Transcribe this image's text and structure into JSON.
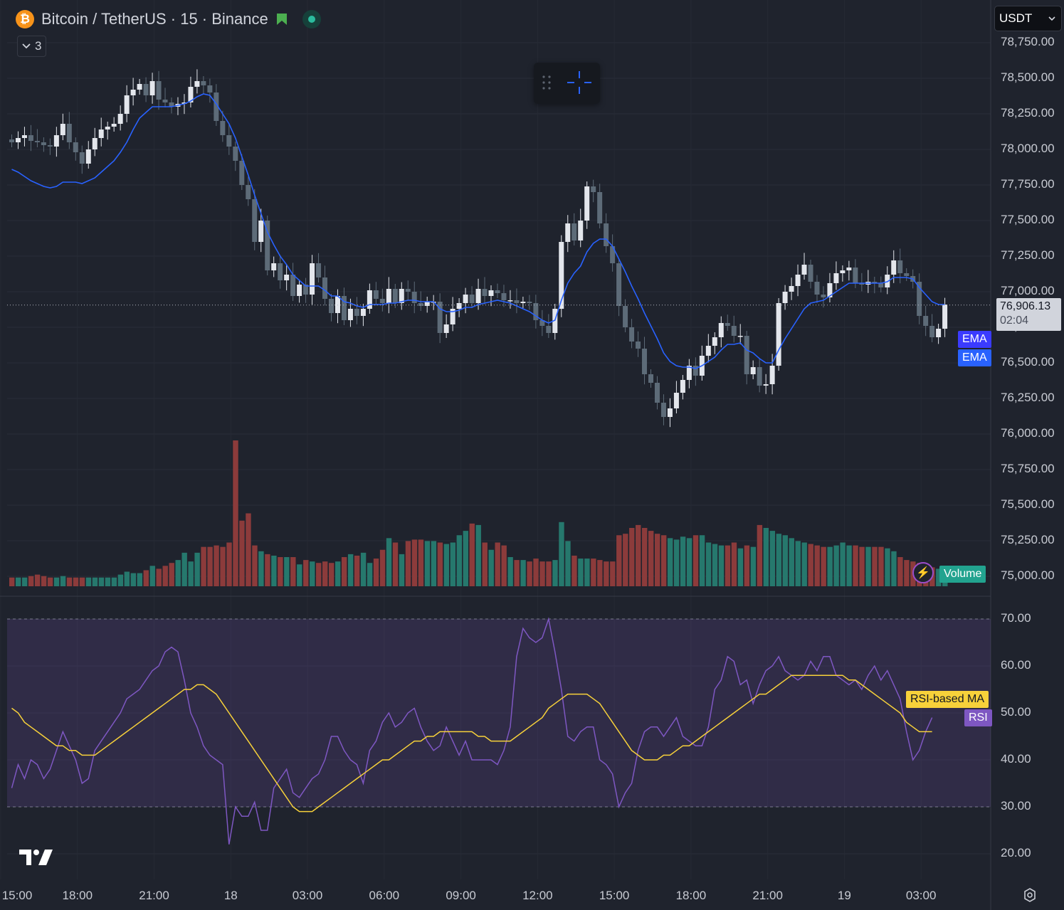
{
  "header": {
    "symbol_title": "Bitcoin / TetherUS · 15 · Binance",
    "collapsed_count": "3",
    "currency": "USDT"
  },
  "price_axis": {
    "labels": [
      "78,750.00",
      "78,500.00",
      "78,250.00",
      "78,000.00",
      "77,750.00",
      "77,500.00",
      "77,250.00",
      "77,000.00",
      "76,750.00",
      "76,500.00",
      "76,250.00",
      "76,000.00",
      "75,750.00",
      "75,500.00",
      "75,250.00",
      "75,000.00"
    ],
    "values": [
      78750,
      78500,
      78250,
      78000,
      77750,
      77500,
      77250,
      77000,
      76750,
      76500,
      76250,
      76000,
      75750,
      75500,
      75250,
      75000
    ]
  },
  "rsi_axis": {
    "labels": [
      "70.00",
      "60.00",
      "50.00",
      "40.00",
      "30.00",
      "20.00"
    ],
    "values": [
      70,
      60,
      50,
      40,
      30,
      20
    ]
  },
  "time_axis": {
    "labels": [
      "15:00",
      "18:00",
      "21:00",
      "18",
      "03:00",
      "06:00",
      "09:00",
      "12:00",
      "15:00",
      "18:00",
      "21:00",
      "19",
      "03:00"
    ],
    "bar_index": [
      -2,
      10,
      22,
      34,
      46,
      58,
      70,
      82,
      94,
      106,
      118,
      130,
      142
    ]
  },
  "last_price": {
    "value": "76,906.13",
    "countdown": "02:04",
    "numeric": 76906.13
  },
  "indicator_labels": {
    "ema1": "EMA",
    "ema2": "EMA",
    "volume": "Volume",
    "rsi_ma": "RSI-based MA",
    "rsi": "RSI"
  },
  "colors": {
    "background": "#1f232d",
    "up_candle": "#e3e6ec",
    "down_candle": "#5d6b78",
    "ema": "#2962ff",
    "ema_tag": "#3b3bff",
    "vol_up": "#26786d",
    "vol_down": "#8c3b3b",
    "rsi": "#7e57c2",
    "rsi_ma": "#f7d13a",
    "rsi_band": "#7e57c2",
    "volume_tag": "#22a38f"
  },
  "icons": [
    "bitcoin-icon",
    "flag-icon",
    "status-dot-icon",
    "chevron-down-icon",
    "drag-handle-icon",
    "crosshair-icon",
    "lightning-icon",
    "tradingview-logo",
    "settings-icon"
  ],
  "chart_data": {
    "type": "candlestick",
    "symbol": "BTCUSDT",
    "interval": "15",
    "exchange": "Binance",
    "close": [
      78050,
      78080,
      78100,
      78060,
      78050,
      78030,
      78020,
      78100,
      78180,
      78050,
      77980,
      77900,
      78000,
      78080,
      78140,
      78160,
      78180,
      78250,
      78380,
      78420,
      78460,
      78380,
      78480,
      78350,
      78330,
      78300,
      78320,
      78330,
      78440,
      78480,
      78450,
      78400,
      78200,
      78100,
      78020,
      77920,
      77750,
      77650,
      77350,
      77500,
      77150,
      77200,
      77080,
      77120,
      76970,
      77050,
      76980,
      77200,
      77100,
      76950,
      76850,
      76970,
      76800,
      76880,
      76830,
      76880,
      77010,
      76950,
      76920,
      77020,
      76920,
      77020,
      77000,
      76920,
      76900,
      76930,
      76930,
      76710,
      76770,
      76880,
      76920,
      76980,
      76920,
      77020,
      76970,
      77010,
      76990,
      76940,
      76940,
      76920,
      76930,
      76920,
      76800,
      76760,
      76710,
      76880,
      77350,
      77480,
      77360,
      77500,
      77740,
      77700,
      77480,
      77320,
      77200,
      76900,
      76750,
      76650,
      76600,
      76420,
      76360,
      76220,
      76120,
      76180,
      76290,
      76380,
      76480,
      76410,
      76550,
      76620,
      76680,
      76780,
      76760,
      76690,
      76690,
      76420,
      76470,
      76340,
      76350,
      76480,
      76920,
      77000,
      77040,
      77120,
      77190,
      77070,
      76980,
      76960,
      77060,
      77130,
      77150,
      77170,
      77060,
      77050,
      77070,
      77060,
      77030,
      77120,
      77220,
      77130,
      77110,
      77070,
      76830,
      76760,
      76680,
      76740,
      76910
    ],
    "ema": [
      77860,
      77840,
      77810,
      77780,
      77760,
      77740,
      77730,
      77740,
      77770,
      77770,
      77770,
      77760,
      77780,
      77800,
      77840,
      77880,
      77920,
      77980,
      78050,
      78140,
      78220,
      78260,
      78300,
      78300,
      78300,
      78300,
      78310,
      78320,
      78340,
      78370,
      78390,
      78380,
      78320,
      78250,
      78180,
      78080,
      77950,
      77820,
      77680,
      77550,
      77420,
      77330,
      77250,
      77190,
      77120,
      77080,
      77040,
      77040,
      77040,
      77010,
      76970,
      76970,
      76930,
      76920,
      76900,
      76890,
      76910,
      76910,
      76910,
      76920,
      76920,
      76930,
      76940,
      76940,
      76930,
      76930,
      76930,
      76880,
      76860,
      76860,
      76870,
      76890,
      76890,
      76910,
      76920,
      76930,
      76940,
      76930,
      76920,
      76900,
      76880,
      76860,
      76830,
      76800,
      76780,
      76800,
      76940,
      77060,
      77130,
      77180,
      77280,
      77340,
      77370,
      77370,
      77320,
      77230,
      77140,
      77040,
      76950,
      76850,
      76760,
      76670,
      76570,
      76510,
      76480,
      76470,
      76470,
      76460,
      76480,
      76510,
      76540,
      76590,
      76630,
      76630,
      76640,
      76590,
      76570,
      76530,
      76500,
      76500,
      76590,
      76670,
      76740,
      76810,
      76880,
      76920,
      76930,
      76940,
      76970,
      77000,
      77030,
      77060,
      77060,
      77060,
      77060,
      77060,
      77060,
      77070,
      77100,
      77100,
      77100,
      77090,
      77030,
      76980,
      76930,
      76910,
      76910
    ],
    "volume_relative": [
      0.06,
      0.06,
      0.06,
      0.07,
      0.08,
      0.07,
      0.06,
      0.06,
      0.07,
      0.06,
      0.06,
      0.06,
      0.06,
      0.06,
      0.06,
      0.06,
      0.06,
      0.08,
      0.1,
      0.09,
      0.09,
      0.11,
      0.14,
      0.12,
      0.14,
      0.16,
      0.18,
      0.23,
      0.17,
      0.23,
      0.27,
      0.27,
      0.28,
      0.27,
      0.3,
      1.0,
      0.45,
      0.5,
      0.28,
      0.24,
      0.22,
      0.21,
      0.2,
      0.2,
      0.2,
      0.15,
      0.18,
      0.17,
      0.16,
      0.17,
      0.16,
      0.17,
      0.2,
      0.22,
      0.21,
      0.23,
      0.16,
      0.19,
      0.25,
      0.33,
      0.3,
      0.22,
      0.31,
      0.32,
      0.32,
      0.31,
      0.31,
      0.3,
      0.29,
      0.3,
      0.35,
      0.38,
      0.43,
      0.42,
      0.3,
      0.25,
      0.3,
      0.28,
      0.2,
      0.18,
      0.18,
      0.17,
      0.19,
      0.17,
      0.17,
      0.18,
      0.44,
      0.31,
      0.21,
      0.19,
      0.19,
      0.19,
      0.18,
      0.17,
      0.17,
      0.35,
      0.36,
      0.4,
      0.42,
      0.4,
      0.38,
      0.36,
      0.35,
      0.33,
      0.32,
      0.34,
      0.33,
      0.35,
      0.35,
      0.3,
      0.29,
      0.28,
      0.28,
      0.3,
      0.26,
      0.28,
      0.27,
      0.42,
      0.4,
      0.38,
      0.36,
      0.35,
      0.33,
      0.31,
      0.3,
      0.29,
      0.28,
      0.27,
      0.27,
      0.28,
      0.3,
      0.28,
      0.28,
      0.27,
      0.27,
      0.27,
      0.27,
      0.26,
      0.24,
      0.2,
      0.18,
      0.17,
      0.16,
      0.14,
      0.13,
      0.12,
      0.1
    ],
    "rsi": [
      34,
      39,
      36,
      40,
      39,
      36,
      38,
      42,
      46,
      43,
      40,
      35,
      36,
      42,
      44,
      46,
      48,
      50,
      53,
      54,
      55,
      57,
      59,
      60,
      63,
      64,
      63,
      57,
      50,
      47,
      43,
      41,
      40,
      39,
      22,
      30,
      28,
      28,
      31,
      25,
      25,
      34,
      36,
      38,
      33,
      32,
      34,
      36,
      37,
      40,
      45,
      45,
      42,
      40,
      39,
      35,
      42,
      44,
      48,
      50,
      47,
      48,
      50,
      51,
      47,
      44,
      42,
      43,
      47,
      44,
      41,
      44,
      40,
      40,
      40,
      40,
      39,
      42,
      47,
      62,
      68,
      66,
      65,
      66,
      70,
      63,
      55,
      45,
      44,
      46,
      47,
      47,
      40,
      39,
      37,
      30,
      33,
      35,
      42,
      46,
      47,
      47,
      45,
      47,
      49,
      45,
      44,
      43,
      43,
      47,
      55,
      57,
      62,
      61,
      56,
      57,
      52,
      56,
      59,
      60,
      62,
      59,
      58,
      57,
      58,
      61,
      59,
      62,
      62,
      58,
      57,
      56,
      57,
      55,
      58,
      60,
      57,
      59,
      56,
      53,
      46,
      40,
      42,
      46,
      49
    ],
    "rsi_ma": [
      51,
      50,
      48,
      47,
      46,
      45,
      44,
      43,
      43,
      42,
      42,
      41,
      41,
      41,
      42,
      43,
      44,
      45,
      46,
      47,
      48,
      49,
      50,
      51,
      52,
      53,
      54,
      55,
      55,
      56,
      56,
      55,
      54,
      52,
      50,
      48,
      46,
      44,
      42,
      40,
      38,
      36,
      34,
      32,
      30,
      29,
      29,
      29,
      30,
      31,
      32,
      33,
      34,
      35,
      36,
      37,
      38,
      39,
      40,
      40,
      41,
      42,
      43,
      44,
      44,
      45,
      45,
      46,
      46,
      46,
      46,
      46,
      46,
      45,
      45,
      44,
      44,
      44,
      44,
      45,
      46,
      47,
      48,
      49,
      51,
      52,
      53,
      54,
      54,
      54,
      54,
      53,
      52,
      50,
      48,
      46,
      44,
      42,
      41,
      40,
      40,
      40,
      41,
      41,
      42,
      43,
      43,
      44,
      45,
      46,
      47,
      48,
      49,
      50,
      51,
      52,
      53,
      54,
      54,
      55,
      56,
      57,
      58,
      58,
      58,
      58,
      58,
      58,
      58,
      58,
      58,
      57,
      57,
      56,
      55,
      54,
      53,
      52,
      51,
      50,
      48,
      47,
      46,
      46,
      46
    ],
    "ylim_price": [
      75000,
      78750
    ],
    "ylim_rsi": [
      20,
      70
    ],
    "rsi_bands": [
      30,
      70
    ],
    "grid": true,
    "legend": [
      "EMA",
      "EMA",
      "Volume",
      "RSI-based MA",
      "RSI"
    ]
  }
}
